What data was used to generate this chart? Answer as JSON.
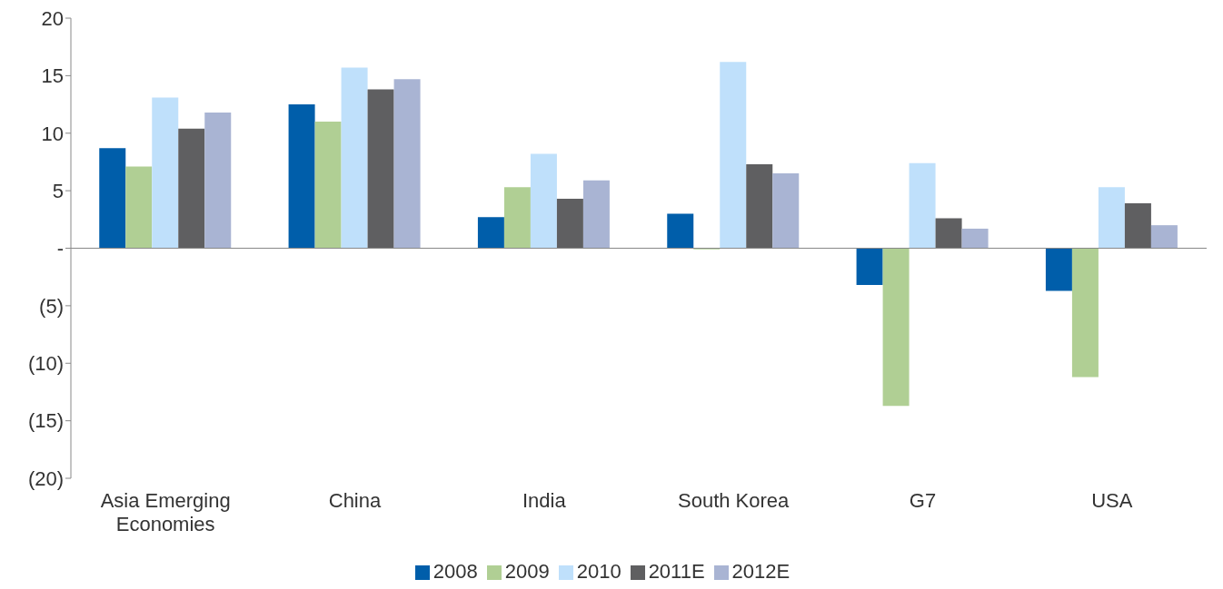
{
  "chart_data": {
    "type": "bar",
    "categories": [
      "Asia Emerging Economies",
      "China",
      "India",
      "South Korea",
      "G7",
      "USA"
    ],
    "series": [
      {
        "name": "2008",
        "color": "#005eaa",
        "values": [
          8.7,
          12.5,
          2.7,
          3.0,
          -3.2,
          -3.7
        ]
      },
      {
        "name": "2009",
        "color": "#b0cf94",
        "values": [
          7.1,
          11.0,
          5.3,
          -0.1,
          -13.7,
          -11.2
        ]
      },
      {
        "name": "2010",
        "color": "#bfe0fb",
        "values": [
          13.1,
          15.7,
          8.2,
          16.2,
          7.4,
          5.3
        ]
      },
      {
        "name": "2011E",
        "color": "#5f5f61",
        "values": [
          10.4,
          13.8,
          4.3,
          7.3,
          2.6,
          3.9
        ]
      },
      {
        "name": "2012E",
        "color": "#a9b4d3",
        "values": [
          11.8,
          14.7,
          5.9,
          6.5,
          1.7,
          2.0
        ]
      }
    ],
    "ylim": [
      -20,
      20
    ],
    "yticks": [
      {
        "value": -20,
        "label": "(20)"
      },
      {
        "value": -15,
        "label": "(15)"
      },
      {
        "value": -10,
        "label": "(10)"
      },
      {
        "value": -5,
        "label": "(5)"
      },
      {
        "value": 0,
        "label": "-"
      },
      5,
      10,
      15,
      20
    ],
    "legend": "bottom"
  }
}
